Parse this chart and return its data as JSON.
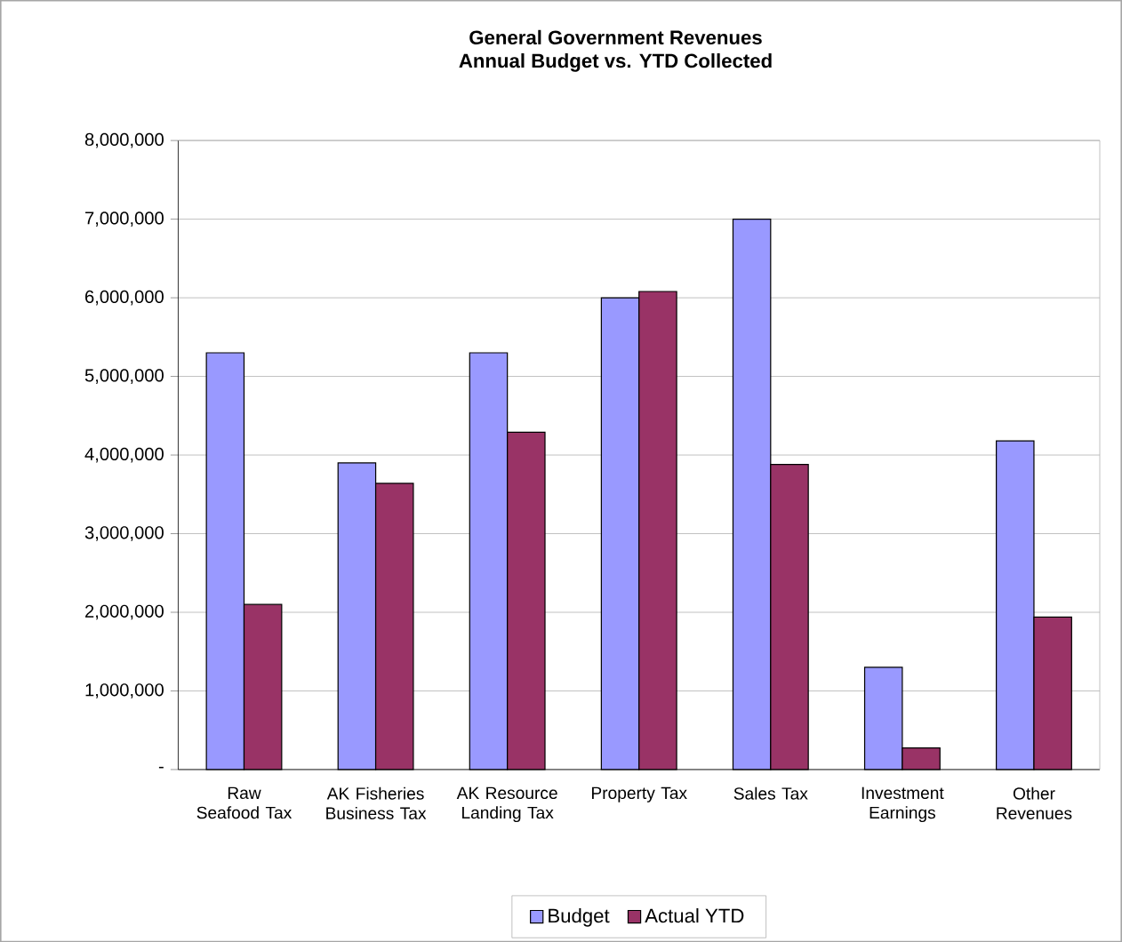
{
  "chart_data": {
    "type": "bar",
    "title": "General Government Revenues",
    "subtitle": "Annual Budget vs. YTD Collected",
    "categories": [
      "Raw Seafood Tax",
      "AK Fisheries Business Tax",
      "AK Resource Landing Tax",
      "Property Tax",
      "Sales Tax",
      "Investment Earnings",
      "Other Revenues"
    ],
    "series": [
      {
        "name": "Budget",
        "color": "#9999ff",
        "values": [
          5300000,
          3900000,
          5300000,
          6000000,
          7000000,
          1300000,
          4180000
        ]
      },
      {
        "name": "Actual YTD",
        "color": "#993366",
        "values": [
          2100000,
          3640000,
          4290000,
          6080000,
          3880000,
          275000,
          1940000
        ]
      }
    ],
    "ylim": [
      0,
      8000000
    ],
    "yticks": [
      {
        "value": 0,
        "label": "-"
      },
      {
        "value": 1000000,
        "label": "1,000,000"
      },
      {
        "value": 2000000,
        "label": "2,000,000"
      },
      {
        "value": 3000000,
        "label": "3,000,000"
      },
      {
        "value": 4000000,
        "label": "4,000,000"
      },
      {
        "value": 5000000,
        "label": "5,000,000"
      },
      {
        "value": 6000000,
        "label": "6,000,000"
      },
      {
        "value": 7000000,
        "label": "7,000,000"
      },
      {
        "value": 8000000,
        "label": "8,000,000"
      }
    ],
    "grid": "y",
    "legend": "bottom"
  }
}
